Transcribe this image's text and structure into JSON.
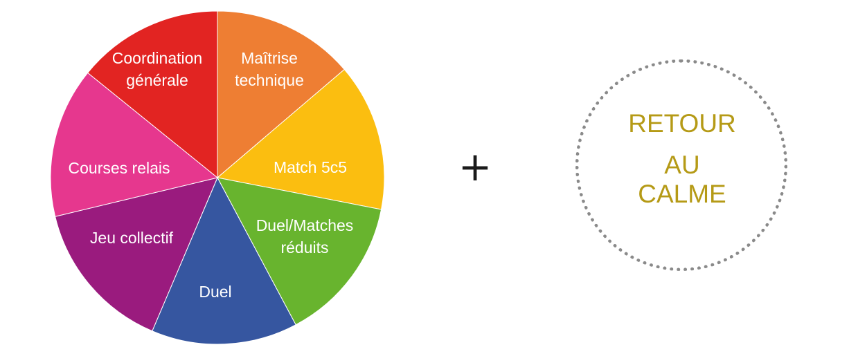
{
  "wheel": {
    "segments": [
      {
        "label": [
          "Maîtrise",
          "technique"
        ],
        "color": "#EE7E33"
      },
      {
        "label": [
          "Match 5c5"
        ],
        "color": "#FBBE10"
      },
      {
        "label": [
          "Duel/Matches",
          "réduits"
        ],
        "color": "#68B42E"
      },
      {
        "label": [
          "Duel"
        ],
        "color": "#3656A0"
      },
      {
        "label": [
          "Jeu collectif"
        ],
        "color": "#9A1B7E"
      },
      {
        "label": [
          "Courses  relais"
        ],
        "color": "#E6378E"
      },
      {
        "label": [
          "Coordination",
          "générale"
        ],
        "color": "#E22422"
      }
    ]
  },
  "plus_sign": "+",
  "calm": {
    "line1": "RETOUR",
    "line2": "AU",
    "line3": "CALME",
    "text_color": "#B59A16",
    "dot_color": "#8A8A8A"
  }
}
